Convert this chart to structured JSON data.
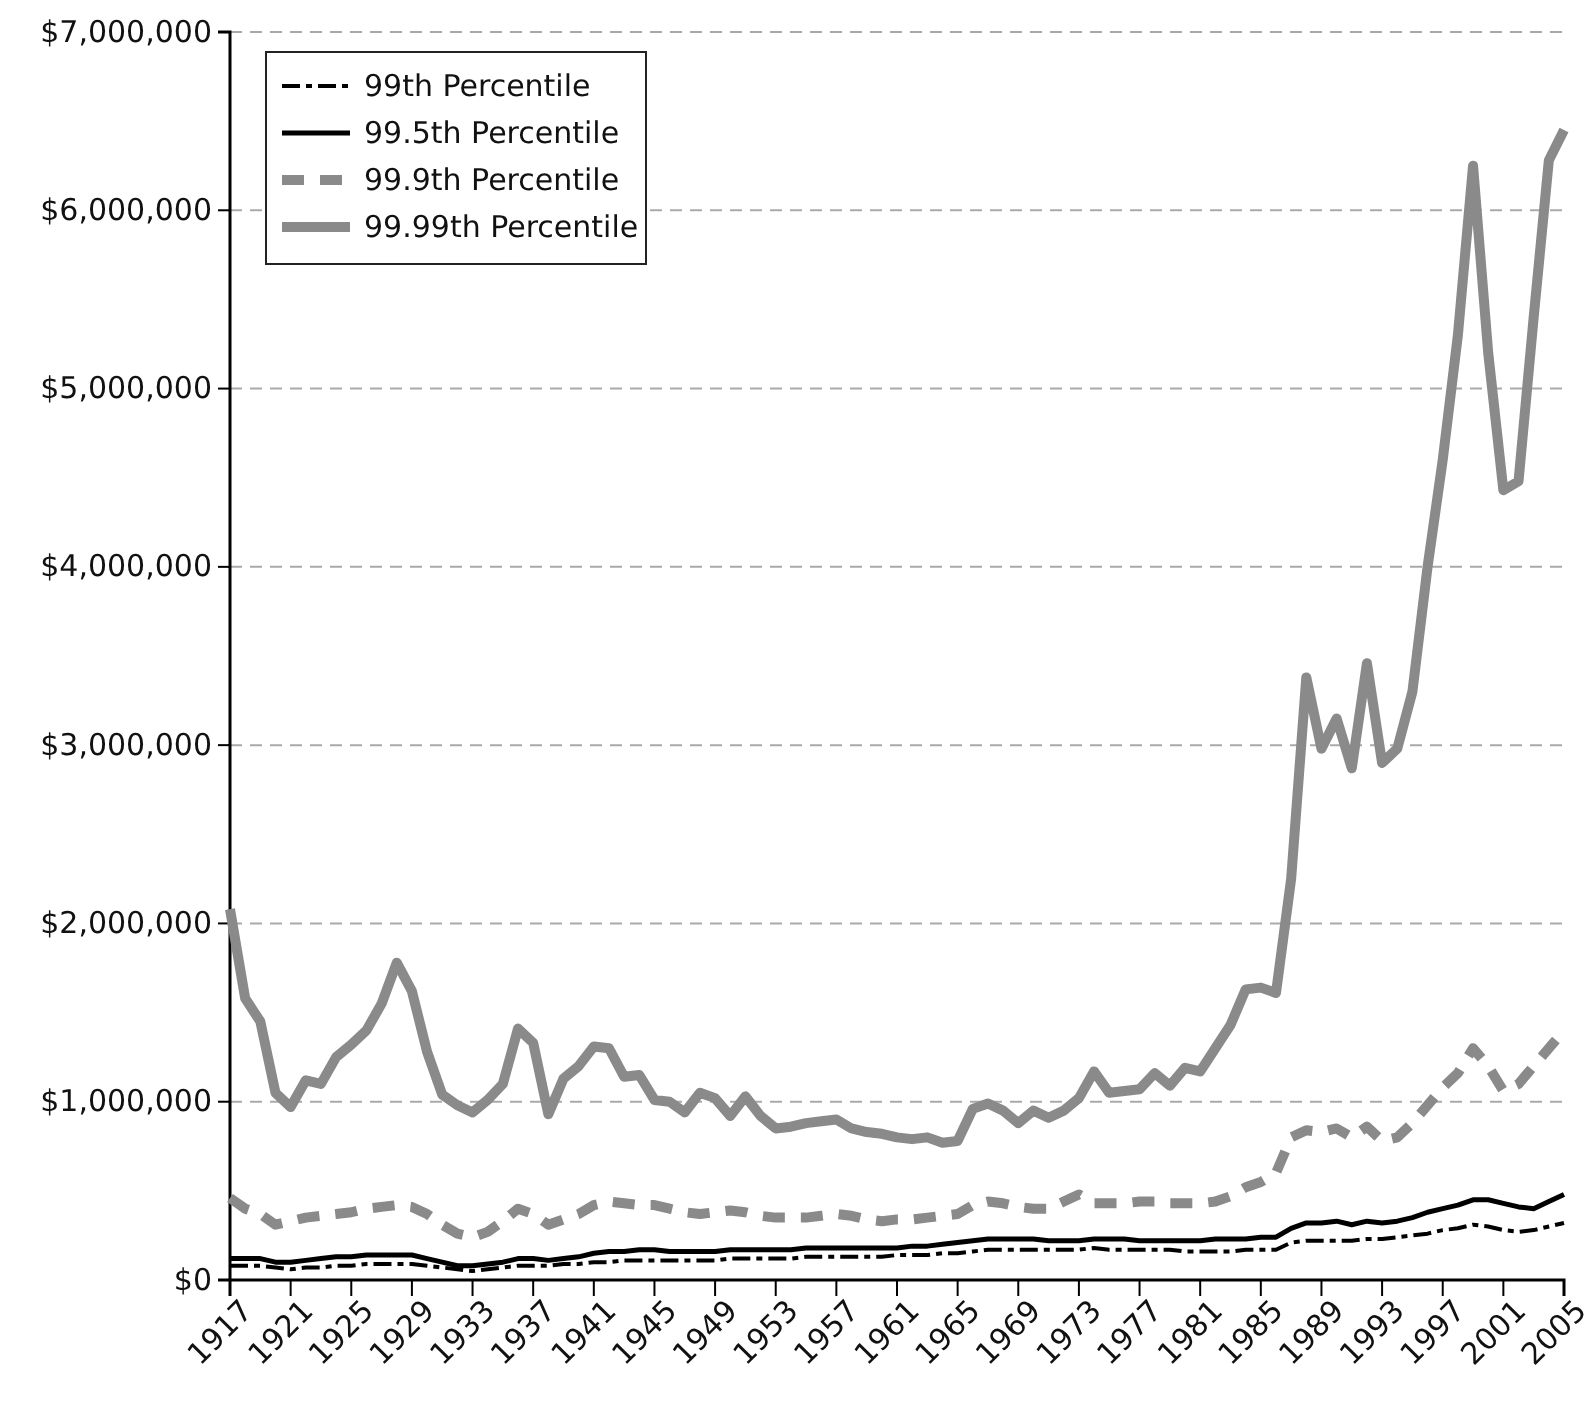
{
  "chart_data": {
    "type": "line",
    "x": [
      1917,
      1918,
      1919,
      1920,
      1921,
      1922,
      1923,
      1924,
      1925,
      1926,
      1927,
      1928,
      1929,
      1930,
      1931,
      1932,
      1933,
      1934,
      1935,
      1936,
      1937,
      1938,
      1939,
      1940,
      1941,
      1942,
      1943,
      1944,
      1945,
      1946,
      1947,
      1948,
      1949,
      1950,
      1951,
      1952,
      1953,
      1954,
      1955,
      1956,
      1957,
      1958,
      1959,
      1960,
      1961,
      1962,
      1963,
      1964,
      1965,
      1966,
      1967,
      1968,
      1969,
      1970,
      1971,
      1972,
      1973,
      1974,
      1975,
      1976,
      1977,
      1978,
      1979,
      1980,
      1981,
      1982,
      1983,
      1984,
      1985,
      1986,
      1987,
      1988,
      1989,
      1990,
      1991,
      1992,
      1993,
      1994,
      1995,
      1996,
      1997,
      1998,
      1999,
      2000,
      2001,
      2002,
      2003,
      2004,
      2005
    ],
    "series": [
      {
        "name": "99th Percentile",
        "color": "#000000",
        "line_style": "dashed",
        "values": [
          80000,
          80000,
          80000,
          70000,
          60000,
          70000,
          70000,
          80000,
          80000,
          90000,
          90000,
          90000,
          90000,
          80000,
          70000,
          60000,
          50000,
          60000,
          70000,
          80000,
          80000,
          80000,
          90000,
          90000,
          100000,
          100000,
          110000,
          110000,
          110000,
          110000,
          110000,
          110000,
          110000,
          120000,
          120000,
          120000,
          120000,
          120000,
          130000,
          130000,
          130000,
          130000,
          130000,
          130000,
          140000,
          140000,
          140000,
          150000,
          150000,
          160000,
          170000,
          170000,
          170000,
          170000,
          170000,
          170000,
          170000,
          180000,
          170000,
          170000,
          170000,
          170000,
          170000,
          160000,
          160000,
          160000,
          160000,
          170000,
          170000,
          170000,
          210000,
          220000,
          220000,
          220000,
          220000,
          230000,
          230000,
          240000,
          250000,
          260000,
          280000,
          290000,
          310000,
          300000,
          280000,
          270000,
          280000,
          300000,
          320000
        ]
      },
      {
        "name": "99.5th Percentile",
        "color": "#000000",
        "line_style": "solid",
        "values": [
          120000,
          120000,
          120000,
          100000,
          100000,
          110000,
          120000,
          130000,
          130000,
          140000,
          140000,
          140000,
          140000,
          120000,
          100000,
          80000,
          80000,
          90000,
          100000,
          120000,
          120000,
          110000,
          120000,
          130000,
          150000,
          160000,
          160000,
          170000,
          170000,
          160000,
          160000,
          160000,
          160000,
          170000,
          170000,
          170000,
          170000,
          170000,
          180000,
          180000,
          180000,
          180000,
          180000,
          180000,
          180000,
          190000,
          190000,
          200000,
          210000,
          220000,
          230000,
          230000,
          230000,
          230000,
          220000,
          220000,
          220000,
          230000,
          230000,
          230000,
          220000,
          220000,
          220000,
          220000,
          220000,
          230000,
          230000,
          230000,
          240000,
          240000,
          290000,
          320000,
          320000,
          330000,
          310000,
          330000,
          320000,
          330000,
          350000,
          380000,
          400000,
          420000,
          450000,
          450000,
          430000,
          410000,
          400000,
          440000,
          480000
        ]
      },
      {
        "name": "99.9th Percentile",
        "color": "#8a8a8a",
        "line_style": "dashed",
        "values": [
          460000,
          400000,
          370000,
          310000,
          330000,
          350000,
          360000,
          370000,
          380000,
          400000,
          410000,
          420000,
          410000,
          370000,
          310000,
          260000,
          240000,
          270000,
          330000,
          400000,
          370000,
          310000,
          340000,
          370000,
          420000,
          440000,
          430000,
          420000,
          420000,
          400000,
          380000,
          370000,
          380000,
          390000,
          380000,
          360000,
          350000,
          350000,
          350000,
          360000,
          370000,
          360000,
          340000,
          330000,
          340000,
          340000,
          350000,
          360000,
          370000,
          420000,
          440000,
          430000,
          410000,
          400000,
          400000,
          440000,
          480000,
          430000,
          430000,
          430000,
          440000,
          440000,
          430000,
          430000,
          430000,
          440000,
          470000,
          520000,
          550000,
          600000,
          800000,
          840000,
          830000,
          850000,
          800000,
          860000,
          780000,
          800000,
          880000,
          980000,
          1080000,
          1160000,
          1300000,
          1200000,
          1060000,
          1100000,
          1200000,
          1300000,
          1400000
        ]
      },
      {
        "name": "99.99th Percentile",
        "color": "#8a8a8a",
        "line_style": "solid",
        "values": [
          2080000,
          1580000,
          1450000,
          1050000,
          970000,
          1120000,
          1100000,
          1250000,
          1320000,
          1400000,
          1550000,
          1780000,
          1620000,
          1280000,
          1040000,
          980000,
          940000,
          1010000,
          1100000,
          1410000,
          1330000,
          930000,
          1130000,
          1200000,
          1310000,
          1300000,
          1140000,
          1150000,
          1010000,
          1000000,
          940000,
          1050000,
          1020000,
          920000,
          1030000,
          920000,
          850000,
          860000,
          880000,
          890000,
          900000,
          850000,
          830000,
          820000,
          800000,
          790000,
          800000,
          770000,
          780000,
          960000,
          990000,
          950000,
          880000,
          950000,
          910000,
          950000,
          1020000,
          1170000,
          1050000,
          1060000,
          1070000,
          1160000,
          1090000,
          1190000,
          1170000,
          1300000,
          1430000,
          1630000,
          1640000,
          1610000,
          2250000,
          3380000,
          2980000,
          3150000,
          2870000,
          3460000,
          2900000,
          2980000,
          3300000,
          4000000,
          4600000,
          5300000,
          6250000,
          5200000,
          4430000,
          4480000,
          5400000,
          6280000,
          6450000
        ]
      }
    ],
    "xlim": [
      1917,
      2005
    ],
    "xticks": [
      1917,
      1921,
      1925,
      1929,
      1933,
      1937,
      1941,
      1945,
      1949,
      1953,
      1957,
      1961,
      1965,
      1969,
      1973,
      1977,
      1981,
      1985,
      1989,
      1993,
      1997,
      2001,
      2005
    ],
    "ylim": [
      0,
      7000000
    ],
    "yticks": [
      {
        "value": 0,
        "label": "$0"
      },
      {
        "value": 1000000,
        "label": "$1,000,000"
      },
      {
        "value": 2000000,
        "label": "$2,000,000"
      },
      {
        "value": 3000000,
        "label": "$3,000,000"
      },
      {
        "value": 4000000,
        "label": "$4,000,000"
      },
      {
        "value": 5000000,
        "label": "$5,000,000"
      },
      {
        "value": 6000000,
        "label": "$6,000,000"
      },
      {
        "value": 7000000,
        "label": "$7,000,000"
      }
    ],
    "grid": "y",
    "legend": "top left"
  }
}
